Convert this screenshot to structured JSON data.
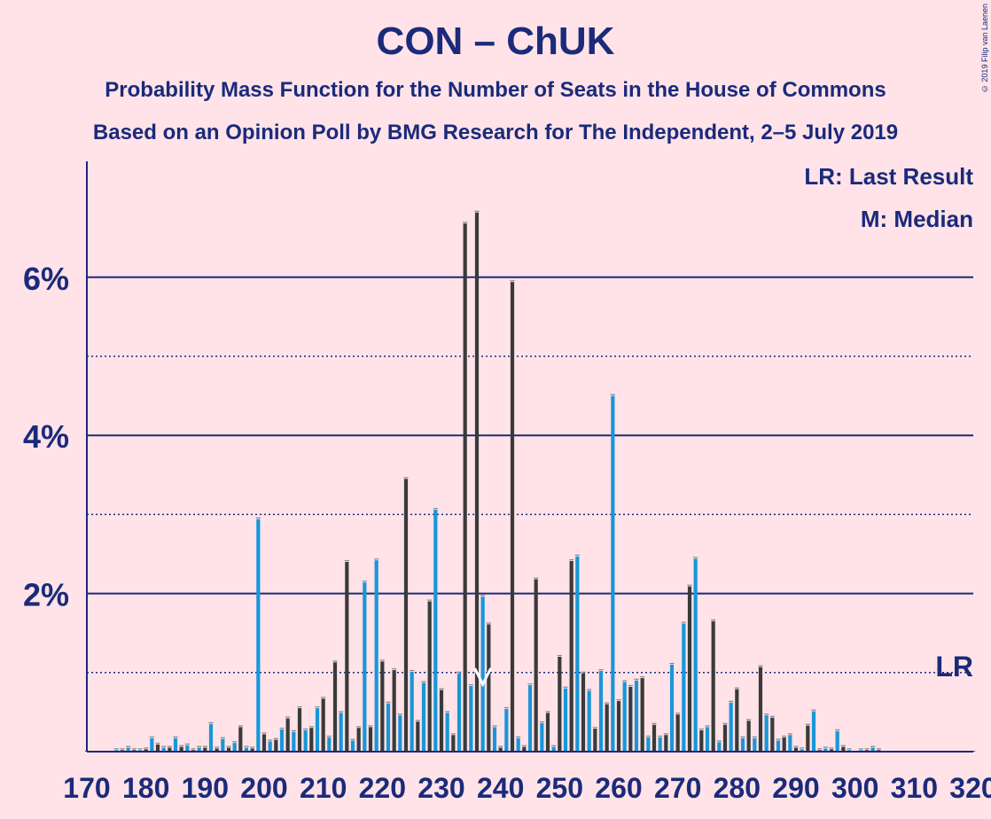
{
  "chart_data": {
    "type": "bar",
    "title": "CON – ChUK",
    "subtitle": "Probability Mass Function for the Number of Seats in the House of Commons",
    "subtitle2": "Based on an Opinion Poll by BMG Research for The Independent, 2–5 July 2019",
    "copyright": "© 2019 Filip van Laenen",
    "legend": [
      "LR: Last Result",
      "M: Median"
    ],
    "lr_label": "LR",
    "xlim": [
      170,
      320
    ],
    "ylim": [
      0,
      7.4
    ],
    "x_ticks": [
      "170",
      "180",
      "190",
      "200",
      "210",
      "220",
      "230",
      "240",
      "250",
      "260",
      "270",
      "280",
      "290",
      "300",
      "310",
      "320"
    ],
    "y_ticks": [
      {
        "value": 2,
        "label": "2%"
      },
      {
        "value": 4,
        "label": "4%"
      },
      {
        "value": 6,
        "label": "6%"
      }
    ],
    "minor_gridlines": [
      1,
      3,
      5
    ],
    "major_gridlines": [
      2,
      4,
      6
    ],
    "median": 237,
    "colors": {
      "blue": "#1a96d8",
      "dark": "#3a3a3a",
      "axis": "#1b2a7a",
      "background": "#ffe3e8"
    },
    "seats": [
      170,
      171,
      172,
      173,
      174,
      175,
      176,
      177,
      178,
      179,
      180,
      181,
      182,
      183,
      184,
      185,
      186,
      187,
      188,
      189,
      190,
      191,
      192,
      193,
      194,
      195,
      196,
      197,
      198,
      199,
      200,
      201,
      202,
      203,
      204,
      205,
      206,
      207,
      208,
      209,
      210,
      211,
      212,
      213,
      214,
      215,
      216,
      217,
      218,
      219,
      220,
      221,
      222,
      223,
      224,
      225,
      226,
      227,
      228,
      229,
      230,
      231,
      232,
      233,
      234,
      235,
      236,
      237,
      238,
      239,
      240,
      241,
      242,
      243,
      244,
      245,
      246,
      247,
      248,
      249,
      250,
      251,
      252,
      253,
      254,
      255,
      256,
      257,
      258,
      259,
      260,
      261,
      262,
      263,
      264,
      265,
      266,
      267,
      268,
      269,
      270,
      271,
      272,
      273,
      274,
      275,
      276,
      277,
      278,
      279,
      280,
      281,
      282,
      283,
      284,
      285,
      286,
      287,
      288,
      289,
      290,
      291,
      292,
      293,
      294,
      295,
      296,
      297,
      298,
      299,
      300,
      301,
      302,
      303,
      304,
      305,
      306,
      307,
      308,
      309,
      310,
      311,
      312,
      313,
      314,
      315,
      316,
      317,
      318,
      319,
      320
    ],
    "values": [
      0.01,
      0.01,
      0.01,
      0.01,
      0.01,
      0.02,
      0.02,
      0.05,
      0.02,
      0.02,
      0.03,
      0.17,
      0.09,
      0.05,
      0.05,
      0.17,
      0.06,
      0.08,
      0.02,
      0.05,
      0.05,
      0.35,
      0.04,
      0.16,
      0.05,
      0.11,
      0.31,
      0.05,
      0.04,
      2.94,
      0.22,
      0.13,
      0.15,
      0.28,
      0.42,
      0.25,
      0.55,
      0.27,
      0.3,
      0.55,
      0.67,
      0.18,
      1.13,
      0.49,
      2.4,
      0.14,
      0.3,
      2.14,
      0.31,
      2.42,
      1.14,
      0.61,
      1.03,
      0.46,
      3.45,
      1.01,
      0.38,
      0.87,
      1.9,
      3.06,
      0.78,
      0.49,
      0.21,
      0.99,
      6.68,
      0.83,
      6.82,
      1.96,
      1.61,
      0.31,
      0.05,
      0.54,
      5.94,
      0.17,
      0.06,
      0.84,
      2.18,
      0.36,
      0.49,
      0.06,
      1.2,
      0.8,
      2.41,
      2.47,
      0.99,
      0.77,
      0.29,
      1.02,
      0.6,
      4.5,
      0.64,
      0.88,
      0.82,
      0.9,
      0.93,
      0.18,
      0.34,
      0.18,
      0.21,
      1.1,
      0.47,
      1.62,
      2.09,
      2.44,
      0.27,
      0.31,
      1.65,
      0.12,
      0.34,
      0.62,
      0.79,
      0.17,
      0.39,
      0.17,
      1.07,
      0.46,
      0.43,
      0.14,
      0.18,
      0.21,
      0.05,
      0.03,
      0.33,
      0.51,
      0.02,
      0.04,
      0.03,
      0.26,
      0.06,
      0.02,
      0.01,
      0.02,
      0.02,
      0.05,
      0.02,
      0.01,
      0.01,
      0.01,
      0.01,
      0.01,
      0.01,
      0.01,
      0.01,
      0.01,
      0.01,
      0.01,
      0.01,
      0.01,
      0.01,
      0.01,
      0.01
    ]
  }
}
